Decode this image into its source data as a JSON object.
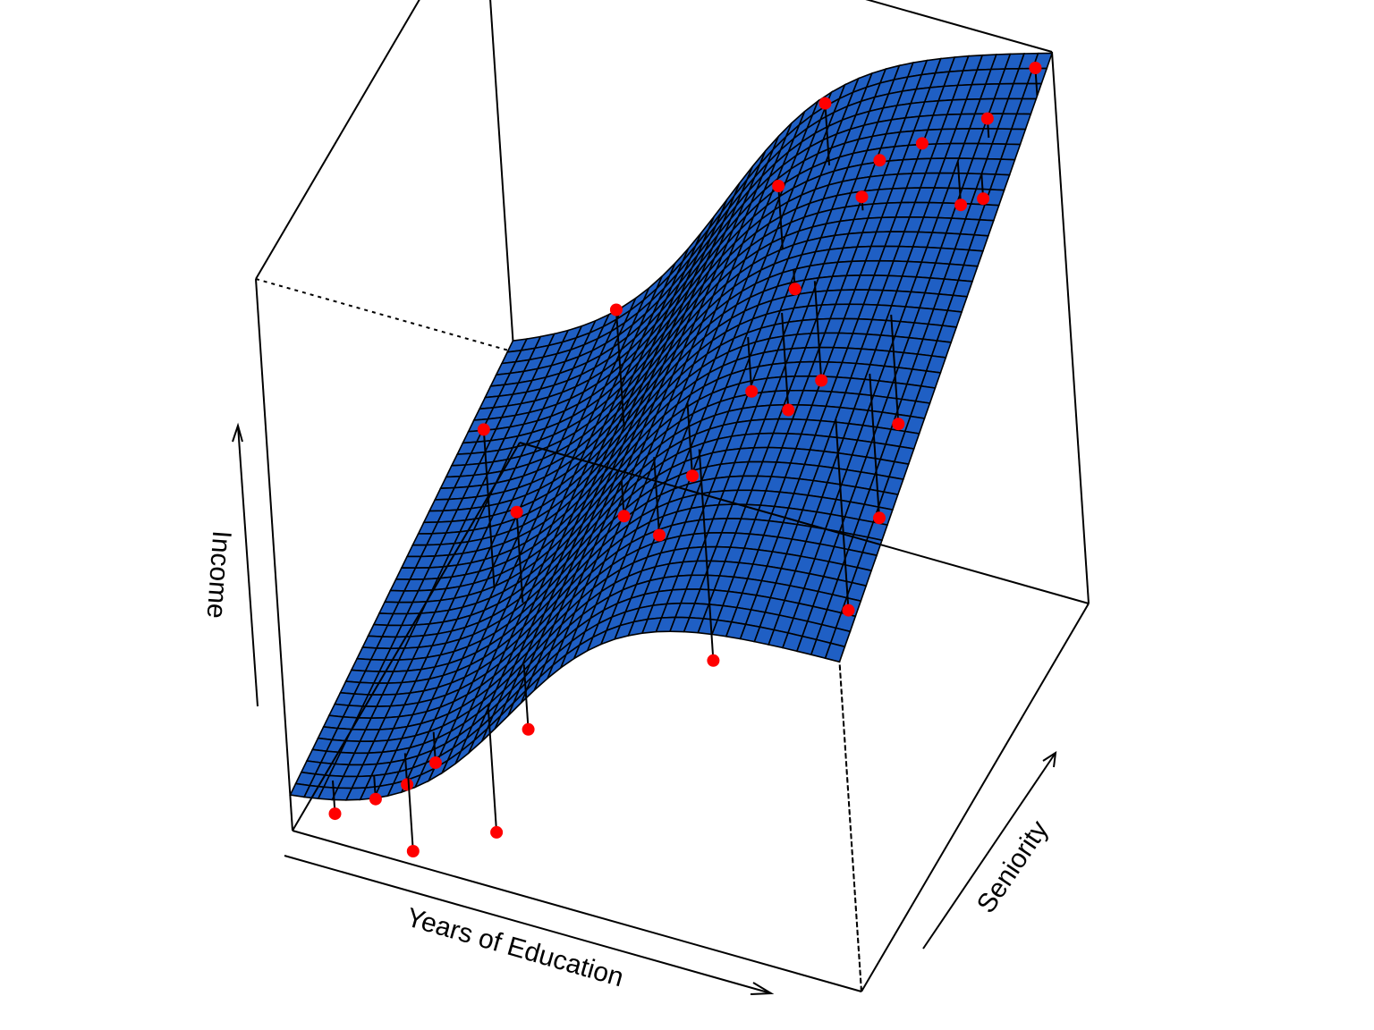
{
  "chart_data": {
    "type": "surface3d",
    "xlabel": "Years of Education",
    "ylabel": "Seniority",
    "zlabel": "Income",
    "ticks": false,
    "surface_color": "#1f5fc4",
    "grid_line_color": "#000000",
    "point_color": "#ff0000",
    "grid_resolution": 40,
    "x_range": [
      0,
      1
    ],
    "y_range": [
      0,
      1
    ],
    "z_range": [
      0,
      1
    ],
    "observations": [
      {
        "x": 0.06,
        "y": 0.04,
        "z": 0.02
      },
      {
        "x": 0.13,
        "y": 0.05,
        "z": 0.06
      },
      {
        "x": 0.17,
        "y": 0.09,
        "z": 0.07
      },
      {
        "x": 0.21,
        "y": 0.12,
        "z": 0.1
      },
      {
        "x": 0.2,
        "y": 0.03,
        "z": 0.0
      },
      {
        "x": 0.32,
        "y": 0.1,
        "z": 0.02
      },
      {
        "x": 0.38,
        "y": 0.12,
        "z": 0.21
      },
      {
        "x": 0.29,
        "y": 0.33,
        "z": 0.43
      },
      {
        "x": 0.2,
        "y": 0.42,
        "z": 0.49
      },
      {
        "x": 0.37,
        "y": 0.6,
        "z": 0.63
      },
      {
        "x": 0.52,
        "y": 0.38,
        "z": 0.42
      },
      {
        "x": 0.55,
        "y": 0.46,
        "z": 0.48
      },
      {
        "x": 0.63,
        "y": 0.54,
        "z": 0.6
      },
      {
        "x": 0.67,
        "y": 0.65,
        "z": 0.72
      },
      {
        "x": 0.72,
        "y": 0.62,
        "z": 0.59
      },
      {
        "x": 0.63,
        "y": 0.7,
        "z": 0.86
      },
      {
        "x": 0.76,
        "y": 0.74,
        "z": 0.85
      },
      {
        "x": 0.68,
        "y": 0.57,
        "z": 0.56
      },
      {
        "x": 0.62,
        "y": 0.34,
        "z": 0.25
      },
      {
        "x": 0.45,
        "y": 0.4,
        "z": 0.42
      },
      {
        "x": 0.85,
        "y": 0.38,
        "z": 0.38
      },
      {
        "x": 0.88,
        "y": 0.46,
        "z": 0.5
      },
      {
        "x": 0.88,
        "y": 0.56,
        "z": 0.6
      },
      {
        "x": 0.76,
        "y": 0.82,
        "z": 0.86
      },
      {
        "x": 0.82,
        "y": 0.86,
        "z": 0.88
      },
      {
        "x": 0.9,
        "y": 0.82,
        "z": 0.82
      },
      {
        "x": 0.95,
        "y": 0.8,
        "z": 0.86
      },
      {
        "x": 0.94,
        "y": 0.86,
        "z": 0.96
      },
      {
        "x": 1.0,
        "y": 0.93,
        "z": 1.02
      },
      {
        "x": 0.66,
        "y": 0.84,
        "z": 0.92
      }
    ]
  }
}
